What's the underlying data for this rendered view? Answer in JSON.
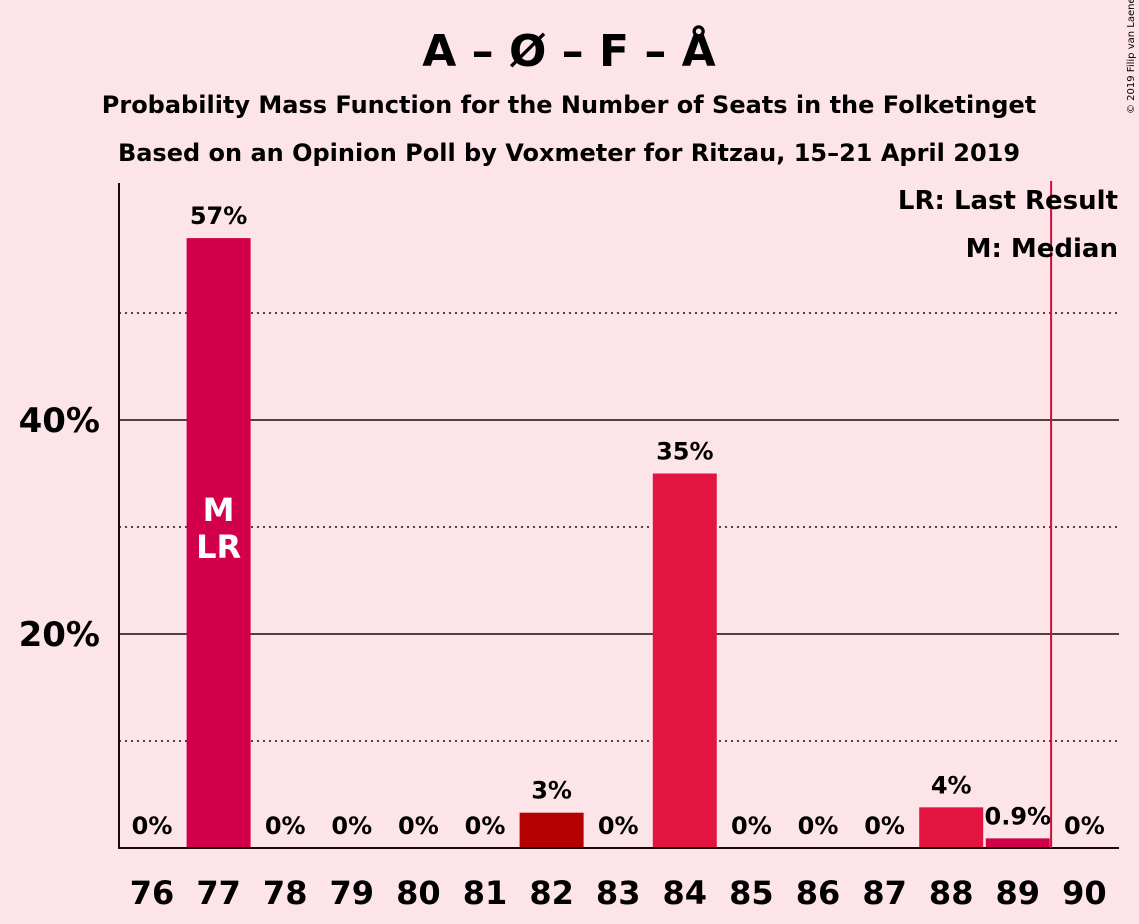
{
  "chart_data": {
    "type": "bar",
    "title": "A – Ø – F – Å",
    "subtitle_lines": [
      "Probability Mass Function for the Number of Seats in the Folketinget",
      "Based on an Opinion Poll by Voxmeter for Ritzau, 15–21 April 2019"
    ],
    "credit": "© 2019 Filip van Laenen",
    "categories": [
      "76",
      "77",
      "78",
      "79",
      "80",
      "81",
      "82",
      "83",
      "84",
      "85",
      "86",
      "87",
      "88",
      "89",
      "90"
    ],
    "values": [
      0,
      57,
      0,
      0,
      0,
      0,
      3.3,
      0,
      35,
      0,
      0,
      0,
      3.8,
      0.9,
      0
    ],
    "value_labels": [
      "0%",
      "57%",
      "0%",
      "0%",
      "0%",
      "0%",
      "3%",
      "0%",
      "35%",
      "0%",
      "0%",
      "0%",
      "4%",
      "0.9%",
      "0%"
    ],
    "bar_colors": [
      "#E31540",
      "#D2004A",
      "#E31540",
      "#E31540",
      "#E31540",
      "#E31540",
      "#B40000",
      "#E31540",
      "#E31540",
      "#E31540",
      "#E31540",
      "#E31540",
      "#E31540",
      "#D2004A",
      "#E31540"
    ],
    "ylim": [
      0,
      62
    ],
    "y_ticks": [
      {
        "value": 20,
        "label": "20%"
      },
      {
        "value": 40,
        "label": "40%"
      }
    ],
    "y_minor_gridlines": [
      10,
      30,
      50
    ],
    "grid": true,
    "majority_line_after": "89",
    "majority_line_color": "#C8103A",
    "bar_annotations": [
      {
        "category": "77",
        "lines": [
          "M",
          "LR"
        ]
      }
    ],
    "legend": {
      "placement": "top-right",
      "entries": [
        "LR: Last Result",
        "M: Median"
      ]
    },
    "xlabel": "",
    "ylabel": ""
  }
}
